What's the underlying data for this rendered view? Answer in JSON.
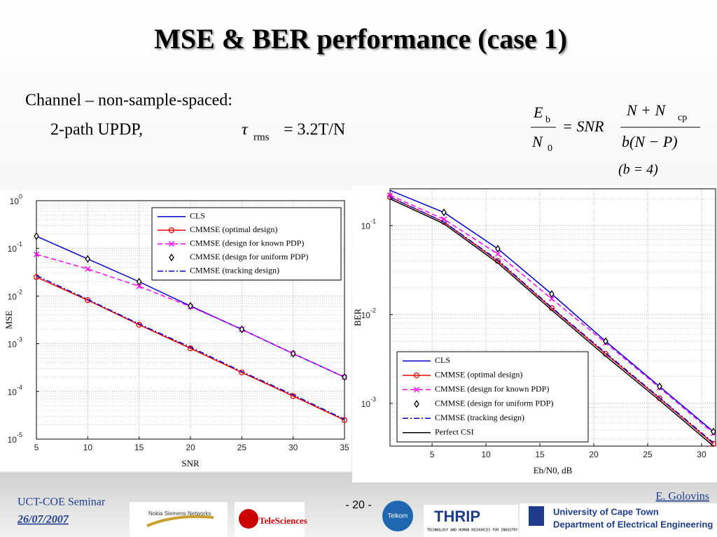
{
  "title": "MSE & BER performance (case 1)",
  "bullets": [
    "Channel – non-sample-spaced:",
    "2-path UPDP,"
  ],
  "formula1": {
    "symbol": "τ",
    "sub": "rms",
    "rhs": "= 3.2T/N"
  },
  "formula2": {
    "lhs_num": "E",
    "lhs_num_sub": "b",
    "lhs_den": "N",
    "lhs_den_sub": "0",
    "mid": "= SNR",
    "num": "N + N",
    "num_sub": "cp",
    "den": "b(N − P)",
    "note": "(b = 4)"
  },
  "footer": {
    "seminar": "UCT-COE Seminar",
    "date": "26/07/2007",
    "page": "- 20 -",
    "author": "E. Golovins",
    "university": "University of Cape Town",
    "department": "Department of Electrical Engineering",
    "logo1": "Nokia Siemens Networks",
    "logo2": "TeleSciences",
    "logo3": "THRIP",
    "logo3_sub": "TECHNOLOGY AND HUMAN RESOURCES FOR INDUSTRY PROGRAMME",
    "logo4": "Telkom"
  },
  "chart_data": [
    {
      "type": "line",
      "xlabel": "SNR",
      "ylabel": "MSE",
      "ylog": true,
      "grid": true,
      "x": [
        5,
        10,
        15,
        20,
        25,
        30,
        35
      ],
      "xlim": [
        5,
        35
      ],
      "xticks": [
        5,
        10,
        15,
        20,
        25,
        30,
        35
      ],
      "ylim": [
        1e-05,
        1
      ],
      "yticks": [
        {
          "value": 1e-05,
          "label": "10",
          "exponent": "-5"
        },
        {
          "value": 0.0001,
          "label": "10",
          "exponent": "-4"
        },
        {
          "value": 0.001,
          "label": "10",
          "exponent": "-3"
        },
        {
          "value": 0.01,
          "label": "10",
          "exponent": "-2"
        },
        {
          "value": 0.1,
          "label": "10",
          "exponent": "-1"
        },
        {
          "value": 1,
          "label": "10",
          "exponent": "0"
        }
      ],
      "series": [
        {
          "name": "CLS",
          "color": "#0000cc",
          "line": "solid",
          "marker": null,
          "values": [
            0.18,
            0.06,
            0.02,
            0.0062,
            0.002,
            0.00062,
            0.0002
          ]
        },
        {
          "name": "CMMSE (optimal design)",
          "color": "#ee0000",
          "line": "solid",
          "marker": "circle",
          "values": [
            0.025,
            0.0082,
            0.0025,
            0.0008,
            0.00025,
            8e-05,
            2.5e-05
          ]
        },
        {
          "name": "CMMSE (design for known PDP)",
          "color": "#ff00ff",
          "line": "dashed",
          "marker": "x",
          "values": [
            0.075,
            0.037,
            0.016,
            0.006,
            0.002,
            0.00062,
            0.0002
          ]
        },
        {
          "name": "CMMSE (design for uniform PDP)",
          "color": "#000000",
          "line": null,
          "marker": "diamond",
          "values": [
            0.18,
            0.06,
            0.02,
            0.0062,
            0.002,
            0.00062,
            0.0002
          ]
        },
        {
          "name": "CMMSE (tracking design)",
          "color": "#0000cc",
          "line": "dashdot",
          "marker": null,
          "values": [
            0.027,
            0.0085,
            0.0026,
            0.00085,
            0.00026,
            8.5e-05,
            2.6e-05
          ]
        }
      ]
    },
    {
      "type": "line",
      "xlabel": "Eb/N0, dB",
      "ylabel": "BER",
      "ylog": true,
      "grid": true,
      "x": [
        1.1,
        6.1,
        11.1,
        16.1,
        21.1,
        26.1,
        31.1
      ],
      "xlim": [
        1.1,
        31.3
      ],
      "xticks": [
        5,
        10,
        15,
        20,
        25,
        30
      ],
      "ylim": [
        0.00033,
        0.26
      ],
      "yticks": [
        {
          "value": 0.001,
          "label": "10",
          "exponent": "-3"
        },
        {
          "value": 0.01,
          "label": "10",
          "exponent": "-2"
        },
        {
          "value": 0.1,
          "label": "10",
          "exponent": "-1"
        }
      ],
      "series": [
        {
          "name": "CLS",
          "color": "#0000cc",
          "line": "solid",
          "marker": null,
          "values": [
            0.25,
            0.141,
            0.055,
            0.017,
            0.005,
            0.00155,
            0.00048
          ]
        },
        {
          "name": "CMMSE (optimal design)",
          "color": "#ee0000",
          "line": "solid",
          "marker": "circle",
          "values": [
            0.21,
            0.11,
            0.04,
            0.0118,
            0.0036,
            0.00114,
            0.00035
          ]
        },
        {
          "name": "CMMSE (design for known PDP)",
          "color": "#ff00ff",
          "line": "dashed",
          "marker": "x",
          "values": [
            0.22,
            0.118,
            0.048,
            0.015,
            0.0048,
            0.0015,
            0.00046
          ]
        },
        {
          "name": "CMMSE (design for uniform PDP)",
          "color": "#000000",
          "line": null,
          "marker": "diamond",
          "values": [
            null,
            0.141,
            0.055,
            0.017,
            0.005,
            0.00155,
            0.00048
          ]
        },
        {
          "name": "CMMSE (tracking design)",
          "color": "#0000cc",
          "line": "dashdot",
          "marker": null,
          "values": [
            0.21,
            0.11,
            0.041,
            0.012,
            0.0037,
            0.00116,
            0.00036
          ]
        },
        {
          "name": "Perfect CSI",
          "color": "#000000",
          "line": "solid",
          "marker": null,
          "values": [
            0.2,
            0.105,
            0.038,
            0.0112,
            0.0034,
            0.00108,
            0.00033
          ]
        }
      ]
    }
  ]
}
